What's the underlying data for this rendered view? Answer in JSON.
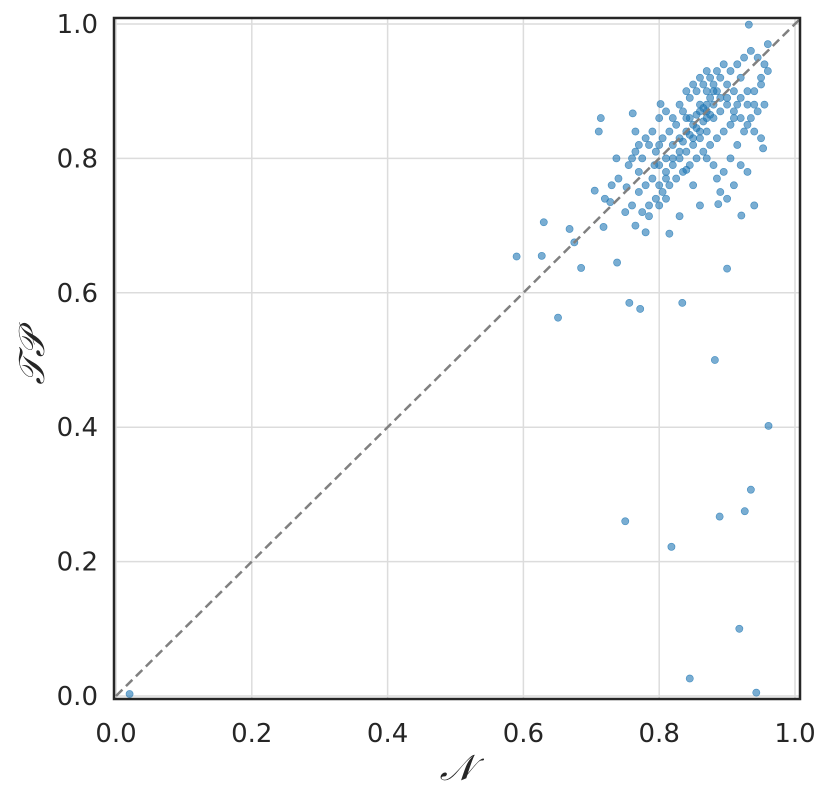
{
  "chart_data": {
    "type": "scatter",
    "title": "",
    "xlabel": "𝒩",
    "ylabel": "𝒯𝒫",
    "xlim": [
      0.0,
      1.0
    ],
    "ylim": [
      0.0,
      1.0
    ],
    "x_ticks": [
      "0.0",
      "0.2",
      "0.4",
      "0.6",
      "0.8",
      "1.0"
    ],
    "y_ticks": [
      "0.0",
      "0.2",
      "0.4",
      "0.6",
      "0.8",
      "1.0"
    ],
    "grid": true,
    "reference_line": {
      "from": [
        0,
        0
      ],
      "to": [
        1,
        1
      ],
      "style": "dashed",
      "color": "#808080"
    },
    "marker_color": "#1f77b4",
    "points": [
      [
        0.02,
        0.003
      ],
      [
        0.59,
        0.654
      ],
      [
        0.627,
        0.655
      ],
      [
        0.63,
        0.705
      ],
      [
        0.651,
        0.563
      ],
      [
        0.668,
        0.695
      ],
      [
        0.675,
        0.675
      ],
      [
        0.685,
        0.637
      ],
      [
        0.711,
        0.84
      ],
      [
        0.714,
        0.86
      ],
      [
        0.705,
        0.752
      ],
      [
        0.718,
        0.698
      ],
      [
        0.738,
        0.645
      ],
      [
        0.728,
        0.735
      ],
      [
        0.737,
        0.8
      ],
      [
        0.752,
        0.757
      ],
      [
        0.756,
        0.585
      ],
      [
        0.772,
        0.576
      ],
      [
        0.761,
        0.867
      ],
      [
        0.765,
        0.84
      ],
      [
        0.77,
        0.78
      ],
      [
        0.78,
        0.69
      ],
      [
        0.785,
        0.714
      ],
      [
        0.75,
        0.26
      ],
      [
        0.793,
        0.79
      ],
      [
        0.8,
        0.82
      ],
      [
        0.802,
        0.881
      ],
      [
        0.81,
        0.74
      ],
      [
        0.815,
        0.688
      ],
      [
        0.818,
        0.222
      ],
      [
        0.83,
        0.714
      ],
      [
        0.834,
        0.585
      ],
      [
        0.845,
        0.026
      ],
      [
        0.84,
        0.783
      ],
      [
        0.85,
        0.76
      ],
      [
        0.86,
        0.73
      ],
      [
        0.87,
        0.93
      ],
      [
        0.882,
        0.5
      ],
      [
        0.887,
        0.732
      ],
      [
        0.889,
        0.267
      ],
      [
        0.9,
        0.636
      ],
      [
        0.918,
        0.1
      ],
      [
        0.921,
        0.715
      ],
      [
        0.926,
        0.275
      ],
      [
        0.935,
        0.307
      ],
      [
        0.94,
        0.73
      ],
      [
        0.943,
        0.005
      ],
      [
        0.953,
        0.815
      ],
      [
        0.961,
        0.402
      ],
      [
        0.932,
        0.999
      ],
      [
        0.96,
        0.97
      ],
      [
        0.95,
        0.91
      ],
      [
        0.94,
        0.88
      ],
      [
        0.92,
        0.92
      ],
      [
        0.93,
        0.9
      ],
      [
        0.91,
        0.86
      ],
      [
        0.9,
        0.89
      ],
      [
        0.89,
        0.87
      ],
      [
        0.88,
        0.88
      ],
      [
        0.87,
        0.87
      ],
      [
        0.86,
        0.88
      ],
      [
        0.87,
        0.86
      ],
      [
        0.865,
        0.875
      ],
      [
        0.875,
        0.89
      ],
      [
        0.885,
        0.9
      ],
      [
        0.855,
        0.865
      ],
      [
        0.845,
        0.86
      ],
      [
        0.85,
        0.85
      ],
      [
        0.84,
        0.84
      ],
      [
        0.83,
        0.83
      ],
      [
        0.82,
        0.82
      ],
      [
        0.81,
        0.8
      ],
      [
        0.8,
        0.79
      ],
      [
        0.79,
        0.77
      ],
      [
        0.78,
        0.76
      ],
      [
        0.77,
        0.75
      ],
      [
        0.76,
        0.73
      ],
      [
        0.75,
        0.72
      ],
      [
        0.74,
        0.77
      ],
      [
        0.73,
        0.76
      ],
      [
        0.72,
        0.74
      ],
      [
        0.755,
        0.79
      ],
      [
        0.765,
        0.81
      ],
      [
        0.775,
        0.8
      ],
      [
        0.785,
        0.82
      ],
      [
        0.795,
        0.81
      ],
      [
        0.805,
        0.83
      ],
      [
        0.815,
        0.84
      ],
      [
        0.825,
        0.85
      ],
      [
        0.835,
        0.87
      ],
      [
        0.845,
        0.89
      ],
      [
        0.855,
        0.9
      ],
      [
        0.865,
        0.91
      ],
      [
        0.875,
        0.92
      ],
      [
        0.885,
        0.93
      ],
      [
        0.895,
        0.94
      ],
      [
        0.905,
        0.93
      ],
      [
        0.915,
        0.94
      ],
      [
        0.925,
        0.95
      ],
      [
        0.935,
        0.96
      ],
      [
        0.945,
        0.95
      ],
      [
        0.955,
        0.94
      ],
      [
        0.915,
        0.88
      ],
      [
        0.905,
        0.85
      ],
      [
        0.895,
        0.84
      ],
      [
        0.885,
        0.83
      ],
      [
        0.875,
        0.82
      ],
      [
        0.865,
        0.81
      ],
      [
        0.855,
        0.8
      ],
      [
        0.845,
        0.79
      ],
      [
        0.835,
        0.78
      ],
      [
        0.825,
        0.77
      ],
      [
        0.815,
        0.76
      ],
      [
        0.805,
        0.75
      ],
      [
        0.795,
        0.74
      ],
      [
        0.785,
        0.73
      ],
      [
        0.775,
        0.72
      ],
      [
        0.765,
        0.7
      ],
      [
        0.885,
        0.77
      ],
      [
        0.895,
        0.78
      ],
      [
        0.905,
        0.8
      ],
      [
        0.915,
        0.82
      ],
      [
        0.925,
        0.84
      ],
      [
        0.935,
        0.86
      ],
      [
        0.945,
        0.87
      ],
      [
        0.955,
        0.88
      ],
      [
        0.93,
        0.78
      ],
      [
        0.92,
        0.79
      ],
      [
        0.91,
        0.76
      ],
      [
        0.9,
        0.74
      ],
      [
        0.89,
        0.75
      ],
      [
        0.88,
        0.79
      ],
      [
        0.87,
        0.8
      ],
      [
        0.86,
        0.84
      ],
      [
        0.85,
        0.83
      ],
      [
        0.84,
        0.86
      ],
      [
        0.83,
        0.81
      ],
      [
        0.82,
        0.8
      ],
      [
        0.81,
        0.78
      ],
      [
        0.8,
        0.76
      ],
      [
        0.79,
        0.84
      ],
      [
        0.78,
        0.83
      ],
      [
        0.77,
        0.82
      ],
      [
        0.76,
        0.8
      ],
      [
        0.8,
        0.86
      ],
      [
        0.81,
        0.87
      ],
      [
        0.82,
        0.86
      ],
      [
        0.83,
        0.88
      ],
      [
        0.84,
        0.9
      ],
      [
        0.85,
        0.91
      ],
      [
        0.86,
        0.92
      ],
      [
        0.87,
        0.9
      ],
      [
        0.88,
        0.91
      ],
      [
        0.89,
        0.92
      ],
      [
        0.9,
        0.91
      ],
      [
        0.91,
        0.9
      ],
      [
        0.92,
        0.89
      ],
      [
        0.93,
        0.88
      ],
      [
        0.94,
        0.9
      ],
      [
        0.95,
        0.92
      ],
      [
        0.96,
        0.93
      ],
      [
        0.87,
        0.88
      ],
      [
        0.86,
        0.87
      ],
      [
        0.88,
        0.86
      ],
      [
        0.875,
        0.865
      ],
      [
        0.865,
        0.855
      ],
      [
        0.855,
        0.845
      ],
      [
        0.845,
        0.835
      ],
      [
        0.835,
        0.825
      ],
      [
        0.88,
        0.9
      ],
      [
        0.89,
        0.89
      ],
      [
        0.9,
        0.88
      ],
      [
        0.91,
        0.87
      ],
      [
        0.92,
        0.86
      ],
      [
        0.93,
        0.85
      ],
      [
        0.94,
        0.84
      ],
      [
        0.95,
        0.83
      ],
      [
        0.87,
        0.84
      ],
      [
        0.86,
        0.83
      ],
      [
        0.85,
        0.82
      ],
      [
        0.84,
        0.81
      ],
      [
        0.83,
        0.8
      ],
      [
        0.82,
        0.79
      ],
      [
        0.81,
        0.77
      ],
      [
        0.8,
        0.73
      ]
    ]
  }
}
